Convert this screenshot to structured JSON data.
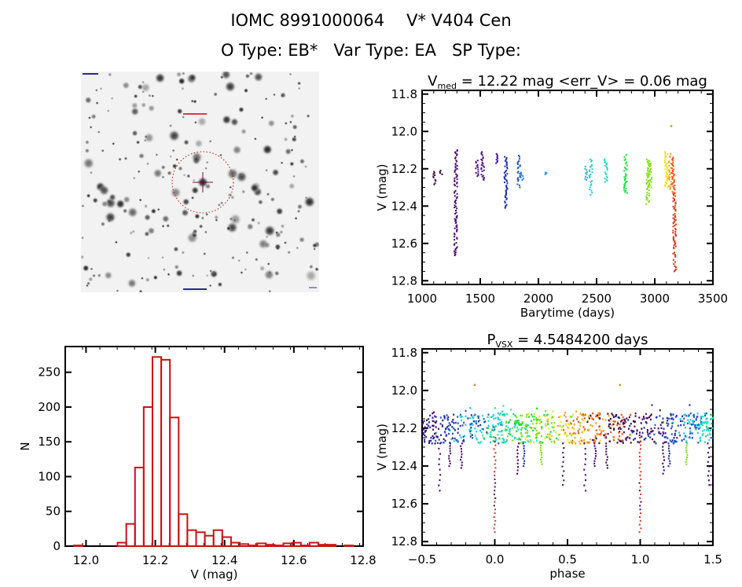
{
  "header": {
    "id_label": "IOMC 8991000064",
    "star_name": "V* V404 Cen",
    "otype_label": "O Type: EB*",
    "vartype_label": "Var Type: EA",
    "sptype_label": "SP Type:"
  },
  "image_panel": {
    "description": "finder-chart star field",
    "target_marker": "red dashed circle with crosshair"
  },
  "chart_data": [
    {
      "id": "light-curve",
      "type": "scatter",
      "title_main": "V",
      "title_sub": "med",
      "title_rest": " = 12.22 mag <err_V> = 0.06 mag",
      "xlabel": "Barytime (days)",
      "ylabel": "V (mag)",
      "xlim": [
        1000,
        3500
      ],
      "ylim": [
        12.82,
        11.78
      ],
      "yinverted": true,
      "xticks": [
        1000,
        1500,
        2000,
        2500,
        3000,
        3500
      ],
      "yticks": [
        "11.8",
        "12.0",
        "12.2",
        "12.4",
        "12.6",
        "12.8"
      ],
      "ytick_values": [
        11.8,
        12.0,
        12.2,
        12.4,
        12.6,
        12.8
      ],
      "grid": false,
      "groups": [
        {
          "x": 1110,
          "ymin": 12.21,
          "ymax": 12.29,
          "color": "#3a0a3a"
        },
        {
          "x": 1160,
          "ymin": 12.21,
          "ymax": 12.23,
          "color": "#3a0a3a"
        },
        {
          "x": 1290,
          "ymin": 12.1,
          "ymax": 12.67,
          "color": "#4b0a6e"
        },
        {
          "x": 1470,
          "ymin": 12.15,
          "ymax": 12.24,
          "color": "#4b1080"
        },
        {
          "x": 1520,
          "ymin": 12.11,
          "ymax": 12.26,
          "color": "#4b1090"
        },
        {
          "x": 1640,
          "ymin": 12.12,
          "ymax": 12.17,
          "color": "#3c1a9a"
        },
        {
          "x": 1720,
          "ymin": 12.13,
          "ymax": 12.41,
          "color": "#1f2fa8"
        },
        {
          "x": 1830,
          "ymin": 12.13,
          "ymax": 12.3,
          "color": "#1f55c0"
        },
        {
          "x": 1860,
          "ymin": 12.22,
          "ymax": 12.26,
          "color": "#2a7ad0"
        },
        {
          "x": 2060,
          "ymin": 12.22,
          "ymax": 12.23,
          "color": "#2a9ac8"
        },
        {
          "x": 2410,
          "ymin": 12.17,
          "ymax": 12.26,
          "color": "#30b0d0"
        },
        {
          "x": 2450,
          "ymin": 12.15,
          "ymax": 12.34,
          "color": "#20c8e0"
        },
        {
          "x": 2580,
          "ymin": 12.15,
          "ymax": 12.27,
          "color": "#20e0c8"
        },
        {
          "x": 2750,
          "ymin": 12.12,
          "ymax": 12.33,
          "color": "#10e040"
        },
        {
          "x": 2940,
          "ymin": 12.15,
          "ymax": 12.39,
          "color": "#80e020"
        },
        {
          "x": 2960,
          "ymin": 12.16,
          "ymax": 12.3,
          "color": "#90e020"
        },
        {
          "x": 3100,
          "ymin": 12.11,
          "ymax": 12.3,
          "color": "#f0e020"
        },
        {
          "x": 3130,
          "ymin": 12.12,
          "ymax": 12.31,
          "color": "#f0a020"
        },
        {
          "x": 3160,
          "ymin": 12.14,
          "ymax": 12.33,
          "color": "#f05010"
        },
        {
          "x": 3170,
          "ymin": 12.33,
          "ymax": 12.75,
          "color": "#e03010"
        }
      ],
      "outliers": [
        {
          "x": 3140,
          "y": 11.97,
          "color": "#e09020"
        }
      ]
    },
    {
      "id": "histogram",
      "type": "bar",
      "title": "",
      "xlabel": "V (mag)",
      "ylabel": "N",
      "xlim": [
        11.94,
        12.8
      ],
      "ylim": [
        0,
        287
      ],
      "xticks": [
        "12.0",
        "12.2",
        "12.4",
        "12.6",
        "12.8"
      ],
      "xtick_values": [
        12.0,
        12.2,
        12.4,
        12.6,
        12.8
      ],
      "yticks": [
        "0",
        "50",
        "100",
        "150",
        "200",
        "250"
      ],
      "ytick_values": [
        0,
        50,
        100,
        150,
        200,
        250
      ],
      "bar_color": "#cc1111",
      "bin_start": 11.965,
      "bin_width": 0.0252,
      "values": [
        1,
        0,
        0,
        0,
        0,
        5,
        32,
        113,
        200,
        272,
        268,
        185,
        46,
        23,
        20,
        15,
        23,
        13,
        5,
        3,
        1,
        4,
        2,
        1,
        4,
        5,
        1,
        5,
        2,
        2,
        0,
        1
      ]
    },
    {
      "id": "phased-curve",
      "type": "scatter",
      "title_main": "P",
      "title_sub": "VSX",
      "title_rest": " = 4.5484200 days",
      "xlabel": "phase",
      "ylabel": "V (mag)",
      "xlim": [
        -0.5,
        1.5
      ],
      "ylim": [
        12.82,
        11.78
      ],
      "yinverted": true,
      "xticks": [
        "-0.5",
        "0.0",
        "0.5",
        "1.0",
        "1.5"
      ],
      "xtick_values": [
        -0.5,
        0.0,
        0.5,
        1.0,
        1.5
      ],
      "yticks": [
        "11.8",
        "12.0",
        "12.2",
        "12.4",
        "12.6",
        "12.8"
      ],
      "ytick_values": [
        11.8,
        12.0,
        12.2,
        12.4,
        12.6,
        12.8
      ],
      "grid": false,
      "period_days": 4.54842,
      "eclipses": [
        {
          "phase": 0.0,
          "depth": 12.75,
          "color": "#d03818"
        },
        {
          "phase": 1.0,
          "depth": 12.75,
          "color": "#d03818"
        }
      ],
      "secondary_dips": [
        {
          "phase": -0.38,
          "depth": 12.53,
          "color": "#4b0a6e"
        },
        {
          "phase": -0.31,
          "depth": 12.4,
          "color": "#4b0a6e"
        },
        {
          "phase": -0.23,
          "depth": 12.41,
          "color": "#4b0a6e"
        },
        {
          "phase": 0.16,
          "depth": 12.44,
          "color": "#4b0a6e"
        },
        {
          "phase": 0.2,
          "depth": 12.4,
          "color": "#1f2fa8"
        },
        {
          "phase": 0.32,
          "depth": 12.39,
          "color": "#80e020"
        },
        {
          "phase": 0.47,
          "depth": 12.5,
          "color": "#4b0a6e"
        },
        {
          "phase": 0.62,
          "depth": 12.53,
          "color": "#4b0a6e"
        },
        {
          "phase": 0.69,
          "depth": 12.4,
          "color": "#4b0a6e"
        },
        {
          "phase": 0.77,
          "depth": 12.41,
          "color": "#4b0a6e"
        },
        {
          "phase": 1.16,
          "depth": 12.44,
          "color": "#4b0a6e"
        },
        {
          "phase": 1.2,
          "depth": 12.4,
          "color": "#1f2fa8"
        },
        {
          "phase": 1.32,
          "depth": 12.39,
          "color": "#80e020"
        },
        {
          "phase": 1.47,
          "depth": 12.5,
          "color": "#4b0a6e"
        }
      ],
      "outliers": [
        {
          "x": -0.14,
          "y": 11.97,
          "color": "#e09020"
        },
        {
          "x": 0.86,
          "y": 11.97,
          "color": "#e09020"
        }
      ],
      "palette": [
        "#3a0a3a",
        "#4b0a6e",
        "#1f2fa8",
        "#1f55c0",
        "#20c8e0",
        "#20e0c8",
        "#10e040",
        "#80e020",
        "#f0e020",
        "#f0a020",
        "#f05010"
      ]
    }
  ]
}
